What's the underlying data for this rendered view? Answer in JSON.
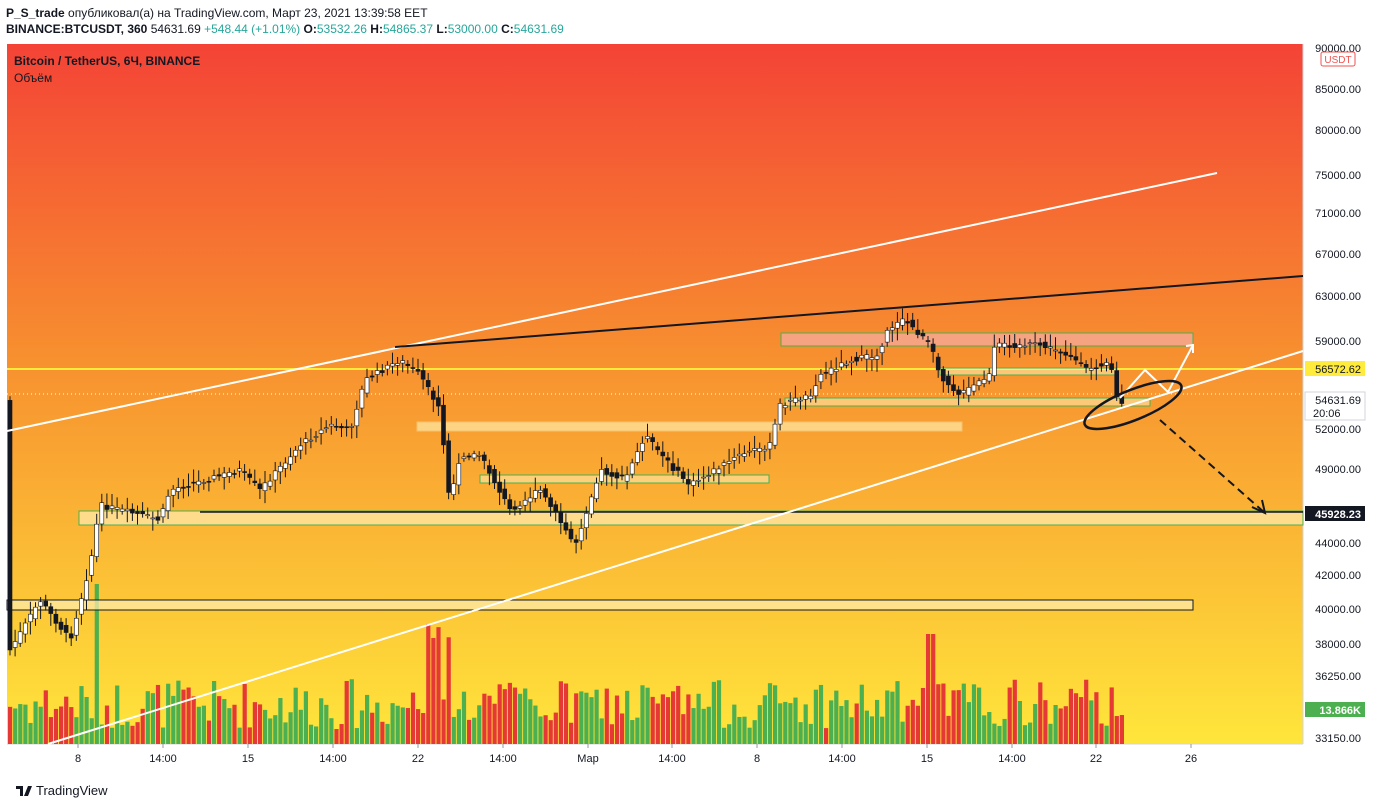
{
  "header": {
    "author": "P_S_trade",
    "published": "опубликовал(а) на TradingView.com, Март 23, 2021 13:39:58 EET",
    "symbol": "BINANCE:BTCUSDT, 360",
    "last": "54631.69",
    "change": "+548.44 (+1.01%)",
    "o_label": "O:",
    "o": "53532.26",
    "h_label": "H:",
    "h": "54865.37",
    "l_label": "L:",
    "l": "53000.00",
    "c_label": "C:",
    "c": "54631.69"
  },
  "legend": {
    "title": "Bitcoin / TetherUS, 6Ч, BINANCE",
    "volume": "Объём"
  },
  "footer": {
    "brand": "TradingView"
  },
  "colors": {
    "up": "#26a69a",
    "down": "#ef5350",
    "volUp": "#4caf50",
    "volDown": "#e53935",
    "bgTop": "#f44336",
    "bgBottom": "#ffeb3b"
  },
  "chart_data": {
    "type": "candlestick",
    "currency_badge": "USDT",
    "y_ticks": [
      "90000.00",
      "85000.00",
      "80000.00",
      "75000.00",
      "71000.00",
      "67000.00",
      "63000.00",
      "59000.00",
      "52000.00",
      "49000.00",
      "44000.00",
      "42000.00",
      "40000.00",
      "38000.00",
      "36250.00",
      "33150.00"
    ],
    "x_ticks": [
      "8",
      "14:00",
      "15",
      "14:00",
      "22",
      "14:00",
      "Мар",
      "14:00",
      "8",
      "14:00",
      "15",
      "14:00",
      "22",
      "26"
    ],
    "price_labels": [
      {
        "text": "56572.62",
        "style": "yellow"
      },
      {
        "text": "54631.69",
        "sub": "20:06",
        "style": "white"
      },
      {
        "text": "45928.23",
        "style": "black"
      },
      {
        "text": "13.866K",
        "style": "green"
      }
    ],
    "levels": {
      "horizontal_yellow": 56572.62,
      "support": 45928.23,
      "zone_low": 40000
    },
    "ohlc_sample": {
      "open": 53532.26,
      "high": 54865.37,
      "low": 53000.0,
      "close": 54631.69
    },
    "last_volume": "13.866K"
  }
}
